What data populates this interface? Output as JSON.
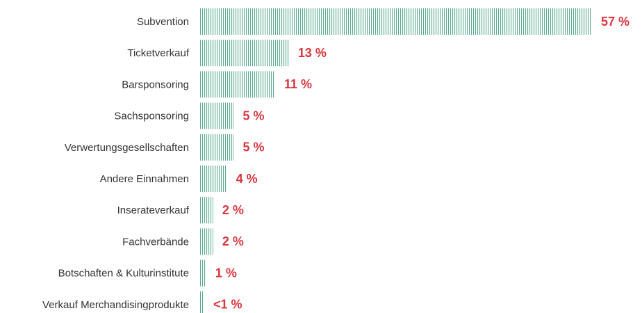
{
  "chart_data": {
    "type": "bar",
    "orientation": "horizontal",
    "categories": [
      "Subvention",
      "Ticketverkauf",
      "Barsponsoring",
      "Sachsponsoring",
      "Verwertungsgesellschaften",
      "Andere Einnahmen",
      "Inserateverkauf",
      "Fachverbände",
      "Botschaften & Kulturinstitute",
      "Verkauf Merchandisingprodukte"
    ],
    "values": [
      57,
      13,
      11,
      5,
      5,
      4,
      2,
      2,
      1,
      0.7
    ],
    "value_labels": [
      "57 %",
      "13 %",
      "11 %",
      "5 %",
      "5 %",
      "4 %",
      "2 %",
      "2 %",
      "1 %",
      "<1 %"
    ],
    "color": "#5aaa8f",
    "label_color": "#d9363e"
  }
}
